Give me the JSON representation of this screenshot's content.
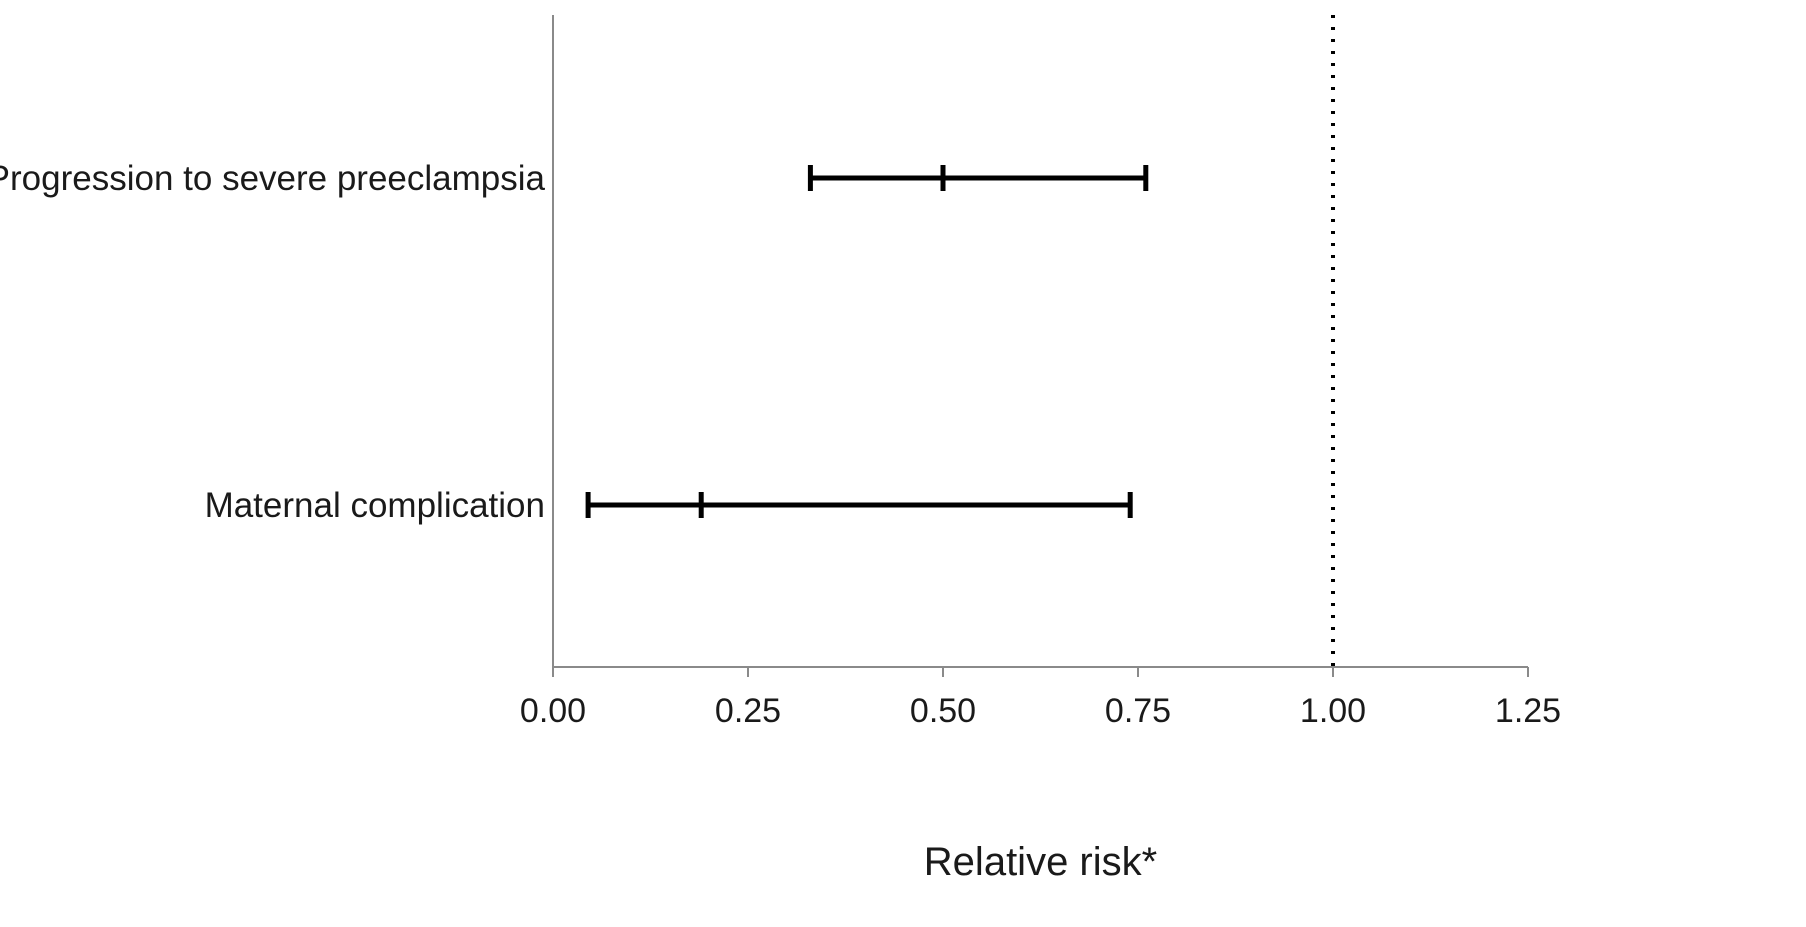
{
  "chart_data": {
    "type": "forest",
    "xlabel": "Relative risk*",
    "ylabel": "",
    "xlim": [
      0,
      1.25
    ],
    "xticks": [
      0,
      0.25,
      0.5,
      0.75,
      1.0,
      1.25
    ],
    "xtick_labels": [
      "0.00",
      "0.25",
      "0.50",
      "0.75",
      "1.00",
      "1.25"
    ],
    "reference_line": {
      "x": 1.0,
      "style": "dotted"
    },
    "grid": false,
    "legend": "none",
    "color": "#000000",
    "items": [
      {
        "label": "Progression to severe preeclampsia",
        "estimate": 0.5,
        "lower": 0.33,
        "upper": 0.76
      },
      {
        "label": "Maternal complication",
        "estimate": 0.19,
        "lower": 0.045,
        "upper": 0.74
      }
    ]
  }
}
